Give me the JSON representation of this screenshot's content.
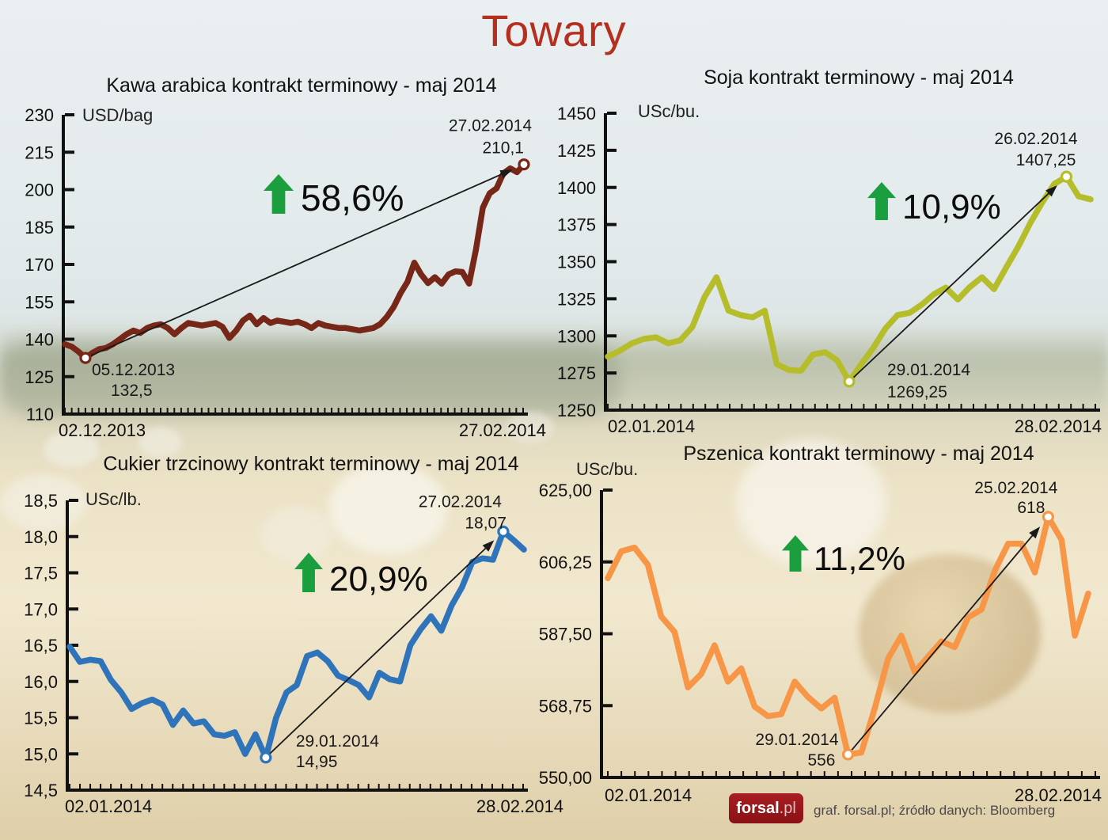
{
  "page_title": "Towary",
  "colors": {
    "title_red": "#b52f1f",
    "green_arrow": "#1b9e3e",
    "axis": "#111111",
    "annotation": "#1a1a1a"
  },
  "footer": {
    "logo_text": "forsal",
    "logo_tld": ".pl",
    "credit": "graf. forsal.pl;   źródło danych: Bloomberg"
  },
  "chart_data": [
    {
      "id": "coffee",
      "type": "line",
      "title": "Kawa arabica kontrakt terminowy  - maj 2014",
      "unit": "USD/bag",
      "color": "#772718",
      "ylim": [
        110,
        230
      ],
      "y_ticks": [
        "230",
        "215",
        "200",
        "185",
        "170",
        "155",
        "140",
        "125",
        "110"
      ],
      "x_start": "02.12.2013",
      "x_end": "27.02.2014",
      "values": [
        138,
        137,
        135,
        132.5,
        134.5,
        136,
        136.5,
        138,
        140,
        142,
        143.5,
        142.5,
        144.5,
        145.5,
        146,
        144.5,
        142,
        144.5,
        146.5,
        146,
        145.5,
        146,
        146.5,
        145,
        140.5,
        143.5,
        147.5,
        149.5,
        146,
        148.5,
        146.5,
        147.5,
        147,
        146.5,
        147,
        146,
        144.5,
        146.5,
        145.5,
        145,
        144.5,
        144.5,
        144,
        143.5,
        144,
        144.5,
        146,
        149,
        153,
        158.5,
        163,
        170.7,
        166,
        162.5,
        164.9,
        162.3,
        166,
        167.2,
        167,
        162.3,
        176,
        192.8,
        198.5,
        200.5,
        206.5,
        208.5,
        207,
        210.1
      ],
      "low": {
        "index": 3,
        "date": "05.12.2013",
        "label": "132,5",
        "value": 132.5
      },
      "peak": {
        "index": 67,
        "date": "27.02.2014",
        "label": "210,1",
        "value": 210.1
      },
      "change": "58,6%"
    },
    {
      "id": "soy",
      "type": "line",
      "title": "Soja kontrakt terminowy - maj 2014",
      "unit": "USc/bu.",
      "color": "#b5bd2b",
      "ylim": [
        1250,
        1450
      ],
      "y_ticks": [
        "1450",
        "1425",
        "1400",
        "1375",
        "1350",
        "1325",
        "1300",
        "1275",
        "1250"
      ],
      "x_start": "02.01.2014",
      "x_end": "28.02.2014",
      "values": [
        1286,
        1290,
        1295,
        1298,
        1299,
        1295,
        1297,
        1306,
        1326,
        1339.5,
        1317,
        1314,
        1312.5,
        1317,
        1281,
        1277,
        1276.5,
        1287.5,
        1289,
        1283.5,
        1269.25,
        1281,
        1292,
        1305,
        1314,
        1315.5,
        1321,
        1328,
        1332.5,
        1324.5,
        1333,
        1339.5,
        1331.5,
        1346,
        1360,
        1376,
        1390,
        1402.5,
        1407.25,
        1394,
        1392
      ],
      "low": {
        "index": 20,
        "date": "29.01.2014",
        "label": "1269,25",
        "value": 1269.25
      },
      "peak": {
        "index": 38,
        "date": "26.02.2014",
        "label": "1407,25",
        "value": 1407.25
      },
      "change": "10,9%"
    },
    {
      "id": "sugar",
      "type": "line",
      "title": "Cukier trzcinowy kontrakt terminowy - maj 2014",
      "unit": "USc/lb.",
      "color": "#2f74ba",
      "ylim": [
        14.5,
        18.5
      ],
      "y_ticks": [
        "18,5",
        "18,0",
        "17,5",
        "17,0",
        "16,5",
        "16,0",
        "15,5",
        "15,0",
        "14,5"
      ],
      "x_start": "02.01.2014",
      "x_end": "28.02.2014",
      "values": [
        16.48,
        16.27,
        16.3,
        16.28,
        16.02,
        15.85,
        15.62,
        15.7,
        15.75,
        15.68,
        15.4,
        15.6,
        15.42,
        15.45,
        15.27,
        15.25,
        15.3,
        15.0,
        15.27,
        14.95,
        15.5,
        15.85,
        15.95,
        16.35,
        16.4,
        16.28,
        16.08,
        16.02,
        15.95,
        15.78,
        16.12,
        16.03,
        16.0,
        16.5,
        16.72,
        16.9,
        16.7,
        17.05,
        17.3,
        17.65,
        17.7,
        17.68,
        18.07,
        17.95,
        17.82
      ],
      "low": {
        "index": 19,
        "date": "29.01.2014",
        "label": "14,95",
        "value": 14.95
      },
      "peak": {
        "index": 42,
        "date": "27.02.2014",
        "label": "18,07",
        "value": 18.07
      },
      "change": "20,9%"
    },
    {
      "id": "wheat",
      "type": "line",
      "title": "Pszenica kontrakt terminowy - maj 2014",
      "unit": "USc/bu.",
      "color": "#f79646",
      "ylim": [
        550,
        625
      ],
      "y_ticks": [
        "625,00",
        "606,25",
        "587,50",
        "568,75",
        "550,00"
      ],
      "x_start": "02.01.2014",
      "x_end": "28.02.2014",
      "values": [
        602,
        609,
        610,
        605.5,
        592,
        588,
        573.5,
        577,
        584.5,
        575,
        578.5,
        568.5,
        566,
        566.5,
        575,
        571,
        568,
        570.8,
        556,
        556.5,
        568,
        581,
        587,
        577.5,
        581.5,
        585.5,
        584,
        591.8,
        593.8,
        604,
        611,
        611,
        603.5,
        618,
        612,
        587,
        598
      ],
      "low": {
        "index": 18,
        "date": "29.01.2014",
        "label": "556",
        "value": 556
      },
      "peak": {
        "index": 33,
        "date": "25.02.2014",
        "label": "618",
        "value": 618
      },
      "change": "11,2%"
    }
  ]
}
